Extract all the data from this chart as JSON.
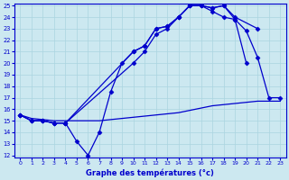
{
  "xlabel": "Graphe des températures (°c)",
  "background_color": "#cce8f0",
  "line_color": "#0000cc",
  "grid_color": "#aad4e0",
  "ylim": [
    12,
    25
  ],
  "xlim": [
    -0.5,
    23.5
  ],
  "yticks": [
    12,
    13,
    14,
    15,
    16,
    17,
    18,
    19,
    20,
    21,
    22,
    23,
    24,
    25
  ],
  "xticks": [
    0,
    1,
    2,
    3,
    4,
    5,
    6,
    7,
    8,
    9,
    10,
    11,
    12,
    13,
    14,
    15,
    16,
    17,
    18,
    19,
    20,
    21,
    22,
    23
  ],
  "series": [
    {
      "x": [
        0,
        1,
        2,
        3,
        4,
        5,
        6,
        7,
        8,
        9,
        10,
        11,
        12,
        13,
        14,
        15,
        16,
        17,
        18,
        19,
        20
      ],
      "y": [
        15.5,
        15.0,
        15.0,
        14.8,
        14.8,
        13.2,
        12.0,
        14.0,
        17.5,
        20.0,
        21.0,
        21.5,
        23.0,
        23.2,
        24.0,
        25.0,
        25.0,
        24.8,
        25.0,
        23.8,
        20.0
      ],
      "marker": "D",
      "markersize": 2.5,
      "lw": 0.9
    },
    {
      "x": [
        0,
        1,
        2,
        3,
        4,
        10,
        11,
        12,
        13,
        14,
        15,
        16,
        17,
        18,
        19,
        21
      ],
      "y": [
        15.5,
        15.0,
        15.0,
        14.8,
        14.8,
        21.0,
        21.5,
        23.0,
        23.2,
        24.0,
        25.0,
        25.0,
        24.8,
        25.0,
        24.0,
        23.0
      ],
      "marker": "D",
      "markersize": 2.5,
      "lw": 0.9
    },
    {
      "x": [
        0,
        1,
        2,
        3,
        4,
        10,
        11,
        12,
        13,
        14,
        15,
        16,
        17,
        18,
        19,
        20,
        21,
        22,
        23
      ],
      "y": [
        15.5,
        15.0,
        15.0,
        14.8,
        14.8,
        20.0,
        21.0,
        22.5,
        23.0,
        24.0,
        25.0,
        25.0,
        24.5,
        24.0,
        23.8,
        22.8,
        20.5,
        17.0,
        17.0
      ],
      "marker": "D",
      "markersize": 2.5,
      "lw": 0.9
    },
    {
      "x": [
        0,
        1,
        2,
        3,
        4,
        5,
        6,
        7,
        8,
        9,
        10,
        11,
        12,
        13,
        14,
        15,
        16,
        17,
        18,
        19,
        20,
        21,
        22,
        23
      ],
      "y": [
        15.5,
        15.2,
        15.1,
        15.0,
        15.0,
        15.0,
        15.0,
        15.0,
        15.1,
        15.2,
        15.3,
        15.4,
        15.5,
        15.6,
        15.7,
        15.9,
        16.1,
        16.3,
        16.4,
        16.5,
        16.6,
        16.7,
        16.7,
        16.7
      ],
      "marker": null,
      "markersize": 0,
      "lw": 0.9
    }
  ]
}
